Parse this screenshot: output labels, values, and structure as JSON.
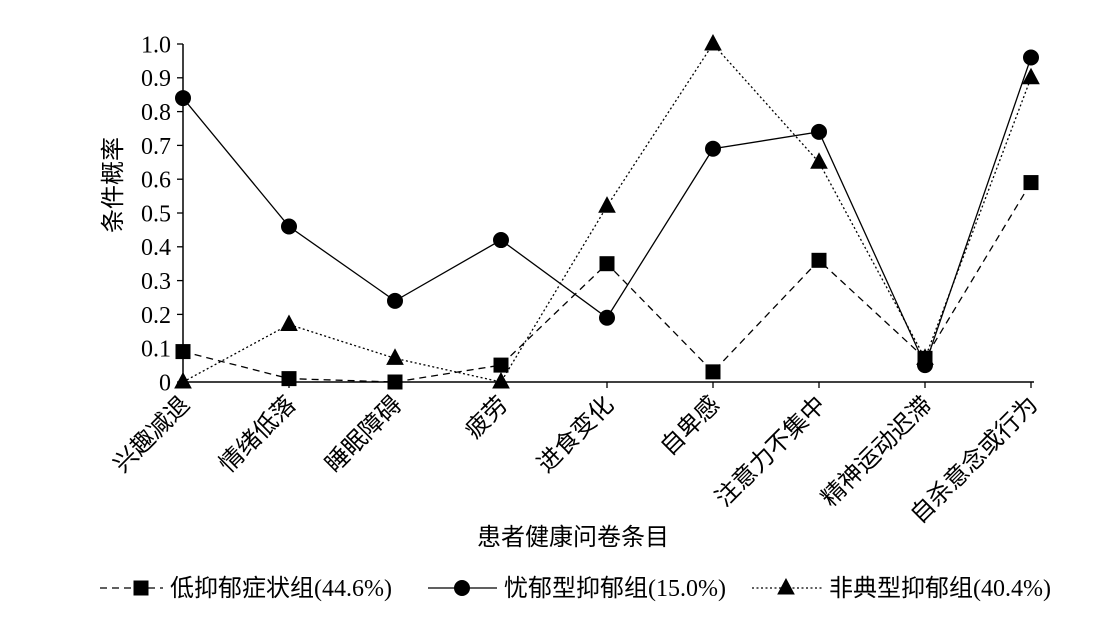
{
  "chart_data": {
    "type": "line",
    "xlabel": "患者健康问卷条目",
    "ylabel": "条件概率",
    "ylim": [
      0,
      1.0
    ],
    "ytick_labels": [
      "0",
      "0.1",
      "0.2",
      "0.3",
      "0.4",
      "0.5",
      "0.6",
      "0.7",
      "0.8",
      "0.9",
      "1.0"
    ],
    "categories": [
      "兴趣减退",
      "情绪低落",
      "睡眠障碍",
      "疲劳",
      "进食变化",
      "自卑感",
      "注意力不集中",
      "精神运动迟滞",
      "自杀意念或行为"
    ],
    "grid": false,
    "legend": "bottom",
    "color": "#000000",
    "series": [
      {
        "name": "低抑郁症状组(44.6%)",
        "marker": "square",
        "line_style": "dashed",
        "values": [
          0.09,
          0.01,
          0.0,
          0.05,
          0.35,
          0.03,
          0.36,
          0.07,
          0.59
        ]
      },
      {
        "name": "忧郁型抑郁组(15.0%)",
        "marker": "circle",
        "line_style": "solid",
        "values": [
          0.84,
          0.46,
          0.24,
          0.42,
          0.19,
          0.69,
          0.74,
          0.05,
          0.96
        ]
      },
      {
        "name": "非典型抑郁组(40.4%)",
        "marker": "triangle",
        "line_style": "dotted",
        "values": [
          0.0,
          0.17,
          0.07,
          0.0,
          0.52,
          1.0,
          0.65,
          0.07,
          0.9
        ]
      }
    ]
  }
}
